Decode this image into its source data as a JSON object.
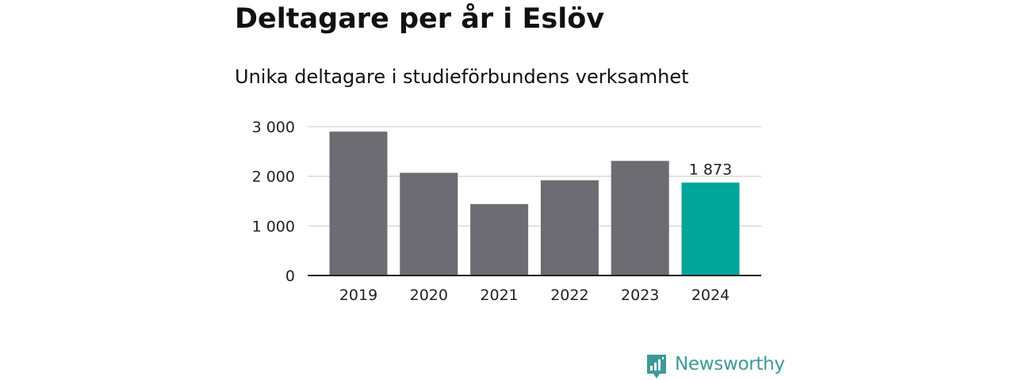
{
  "chart_data": {
    "type": "bar",
    "title": "Deltagare per år i Eslöv",
    "subtitle": "Unika deltagare i studieförbundens verksamhet",
    "categories": [
      "2019",
      "2020",
      "2021",
      "2022",
      "2023",
      "2024"
    ],
    "values": [
      2900,
      2070,
      1440,
      1920,
      2310,
      1873
    ],
    "highlight_index": 5,
    "highlight_label": "1 873",
    "ylim": [
      0,
      3000
    ],
    "yticks": [
      0,
      1000,
      2000,
      3000
    ],
    "ytick_labels": [
      "0",
      "1 000",
      "2 000",
      "3 000"
    ],
    "grid": true,
    "colors": {
      "bar": "#6d6c72",
      "highlight": "#00a69a",
      "grid": "#d9d9d9",
      "axis": "#222222",
      "text": "#222222"
    }
  },
  "brand": {
    "name": "Newsworthy",
    "icon": "newsworthy-logo-icon",
    "color": "#3e9a98"
  }
}
